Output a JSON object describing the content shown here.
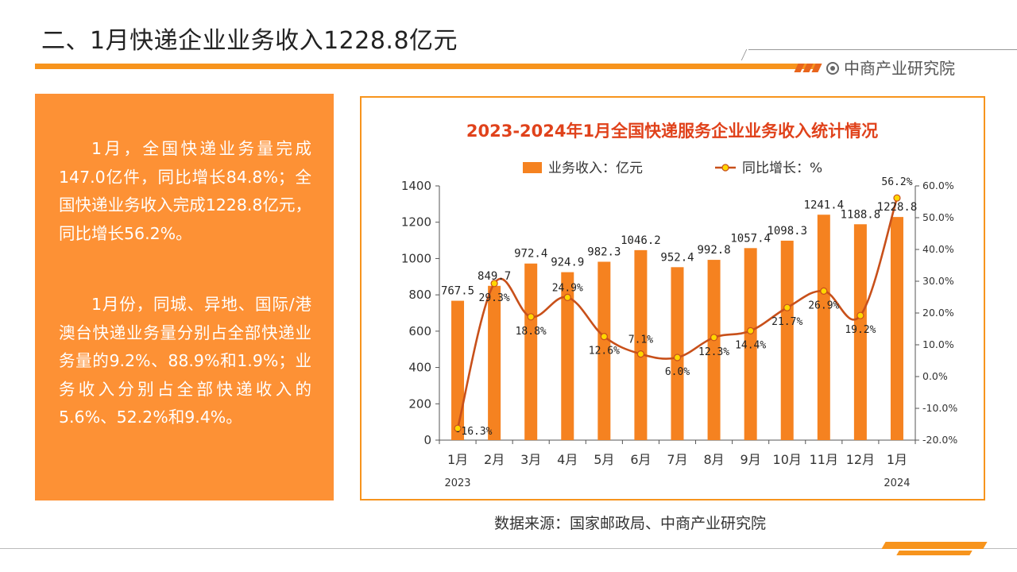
{
  "page": {
    "title": "二、1月快递企业业务收入1228.8亿元",
    "logo": "中商产业研究院",
    "source": "数据来源：国家邮政局、中商产业研究院"
  },
  "text_panel": {
    "para1": "1月，全国快递业务量完成147.0亿件，同比增长84.8%；全国快递业务收入完成1228.8亿元，同比增长56.2%。",
    "para2": "1月份，同城、异地、国际/港澳台快递业务量分别占全部快递业务量的9.2%、88.9%和1.9%；业务收入分别占全部快递收入的5.6%、52.2%和9.4%。"
  },
  "colors": {
    "accent": "#f7941d",
    "bar": "#f58220",
    "line": "#c8501a",
    "marker": "#ffd700",
    "title_red": "#e0421b",
    "panel": "#fd9135"
  },
  "chart_data": {
    "type": "bar+line",
    "title": "2023-2024年1月全国快递服务企业业务收入统计情况",
    "categories": [
      "1月",
      "2月",
      "3月",
      "4月",
      "5月",
      "6月",
      "7月",
      "8月",
      "9月",
      "10月",
      "11月",
      "12月",
      "1月"
    ],
    "year_labels": [
      {
        "label": "2023",
        "index": 0
      },
      {
        "label": "2024",
        "index": 12
      }
    ],
    "series": [
      {
        "name": "业务收入：亿元",
        "type": "bar",
        "axis": "left",
        "values": [
          767.5,
          849.7,
          972.4,
          924.9,
          982.3,
          1046.2,
          952.4,
          992.8,
          1057.4,
          1098.3,
          1241.4,
          1188.8,
          1228.8
        ],
        "labels": [
          "767.5",
          "849.7",
          "972.4",
          "924.9",
          "982.3",
          "1046.2",
          "952.4",
          "992.8",
          "1057.4",
          "1098.3",
          "1241.4",
          "1188.8",
          "1228.8"
        ]
      },
      {
        "name": "同比增长：%",
        "type": "line",
        "axis": "right",
        "values": [
          -16.3,
          29.3,
          18.8,
          24.9,
          12.6,
          7.1,
          6.0,
          12.3,
          14.4,
          21.7,
          26.9,
          19.2,
          56.2
        ],
        "labels": [
          "-16.3%",
          "29.3%",
          "18.8%",
          "24.9%",
          "12.6%",
          "7.1%",
          "6.0%",
          "12.3%",
          "14.4%",
          "21.7%",
          "26.9%",
          "19.2%",
          "56.2%"
        ]
      }
    ],
    "y_left": {
      "min": 0,
      "max": 1400,
      "ticks": [
        "0",
        "200",
        "400",
        "600",
        "800",
        "1000",
        "1200",
        "1400"
      ]
    },
    "y_right": {
      "min": -20,
      "max": 60,
      "ticks": [
        "-20.0%",
        "-10.0%",
        "0.0%",
        "10.0%",
        "20.0%",
        "30.0%",
        "40.0%",
        "50.0%",
        "60.0%"
      ]
    },
    "legend_position": "top-center",
    "grid": false
  }
}
